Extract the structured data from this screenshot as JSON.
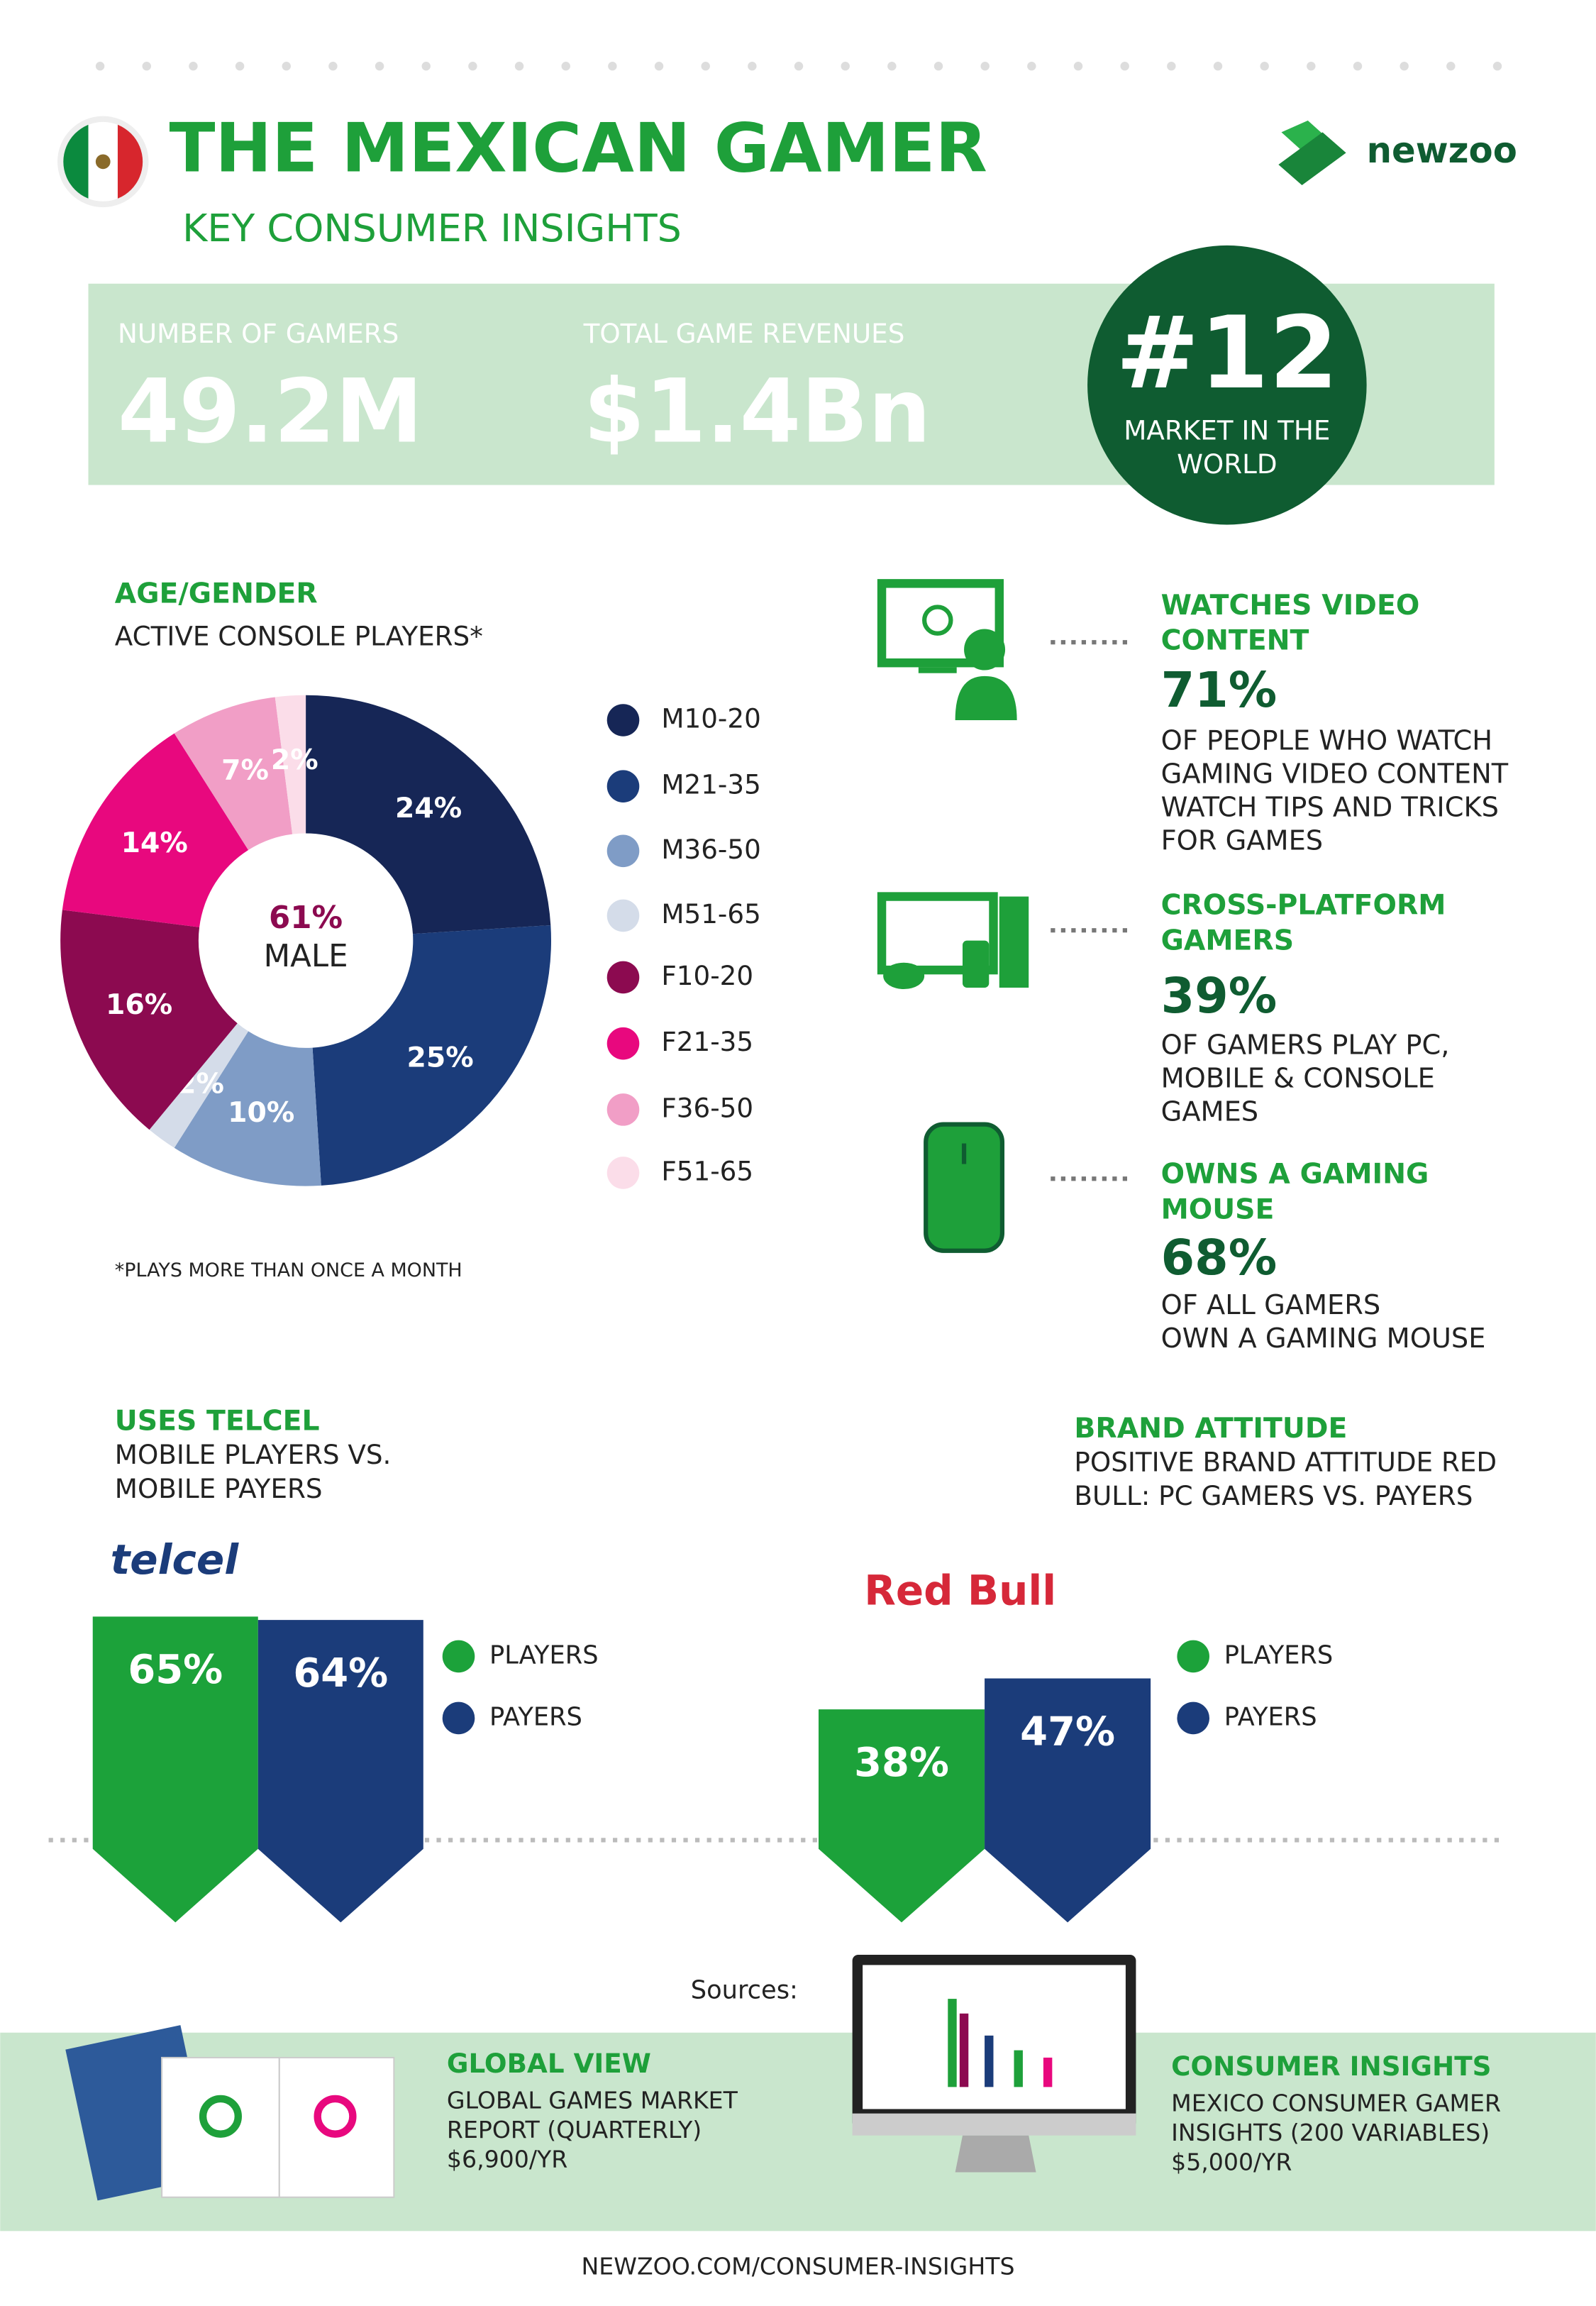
{
  "header": {
    "title": "THE MEXICAN GAMER",
    "subtitle": "KEY CONSUMER INSIGHTS",
    "logo": "newzoo"
  },
  "stats": [
    {
      "label": "NUMBER OF GAMERS",
      "value": "49.2M"
    },
    {
      "label": "TOTAL GAME REVENUES",
      "value": "$1.4Bn"
    }
  ],
  "rank": {
    "value": "#12",
    "label": [
      "MARKET IN THE",
      "WORLD"
    ]
  },
  "chart_data": [
    {
      "type": "donut",
      "title": "AGE/GENDER",
      "subtitle": "ACTIVE CONSOLE PLAYERS*",
      "center_value": "61%",
      "center_label": "MALE",
      "footnote": "*PLAYS MORE THAN ONCE A MONTH",
      "categories": [
        "M10-20",
        "M21-35",
        "M36-50",
        "M51-65",
        "F10-20",
        "F21-35",
        "F36-50",
        "F51-65"
      ],
      "values": [
        24,
        25,
        10,
        2,
        16,
        14,
        7,
        2
      ],
      "value_labels": [
        "24%",
        "25%",
        "10%",
        "2%",
        "16%",
        "14%",
        "7%",
        "2%"
      ],
      "colors": [
        "#162656",
        "#1b3c7a",
        "#7f9cc6",
        "#d4dce9",
        "#8c0a50",
        "#e8087e",
        "#f19ec6",
        "#fbdde9"
      ]
    },
    {
      "type": "bar",
      "title": "USES TELCEL",
      "subtitle": [
        "MOBILE PLAYERS VS.",
        "MOBILE PAYERS"
      ],
      "brand": "telcel",
      "series": [
        {
          "name": "PLAYERS",
          "color": "#1ca23a",
          "values": [
            65
          ],
          "value_labels": [
            "65%"
          ]
        },
        {
          "name": "PAYERS",
          "color": "#1b3c7a",
          "values": [
            64
          ],
          "value_labels": [
            "64%"
          ]
        }
      ]
    },
    {
      "type": "bar",
      "title": "BRAND ATTITUDE",
      "subtitle": [
        "POSITIVE BRAND ATTITUDE RED",
        "BULL: PC GAMERS VS. PAYERS"
      ],
      "brand": "Red Bull",
      "series": [
        {
          "name": "PLAYERS",
          "color": "#1ca23a",
          "values": [
            38
          ],
          "value_labels": [
            "38%"
          ]
        },
        {
          "name": "PAYERS",
          "color": "#1b3c7a",
          "values": [
            47
          ],
          "value_labels": [
            "47%"
          ]
        }
      ]
    }
  ],
  "insights": [
    {
      "title": [
        "WATCHES VIDEO",
        "CONTENT"
      ],
      "value": "71%",
      "text": [
        "OF PEOPLE WHO WATCH",
        "GAMING VIDEO CONTENT",
        "WATCH TIPS AND TRICKS",
        "FOR GAMES"
      ]
    },
    {
      "title": [
        "CROSS-PLATFORM",
        "GAMERS"
      ],
      "value": "39%",
      "text": [
        "OF GAMERS PLAY PC,",
        "MOBILE & CONSOLE",
        "GAMES"
      ]
    },
    {
      "title": [
        "OWNS A GAMING",
        "MOUSE"
      ],
      "value": "68%",
      "text": [
        "OF ALL GAMERS",
        "OWN A GAMING MOUSE"
      ]
    }
  ],
  "sources": {
    "label": "Sources:",
    "items": [
      {
        "title": "GLOBAL VIEW",
        "text": [
          "GLOBAL GAMES MARKET",
          "REPORT (QUARTERLY)",
          "$6,900/YR"
        ]
      },
      {
        "title": "CONSUMER INSIGHTS",
        "text": [
          "MEXICO CONSUMER GAMER",
          "INSIGHTS (200 VARIABLES)",
          "$5,000/YR"
        ]
      }
    ]
  },
  "footer": "NEWZOO.COM/CONSUMER-INSIGHTS"
}
